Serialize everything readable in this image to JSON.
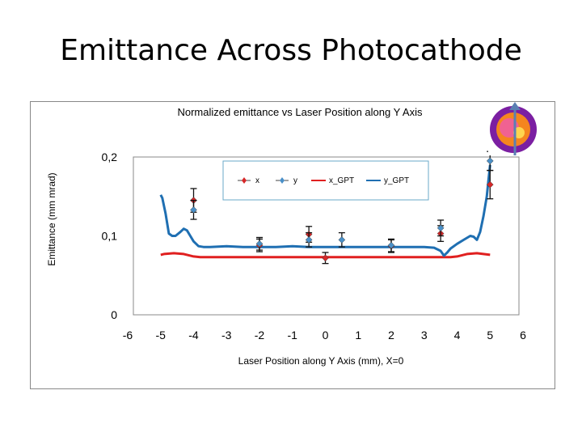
{
  "slide": {
    "title": "Emittance Across Photocathode"
  },
  "chart_data": {
    "type": "line",
    "title": "Normalized emittance vs Laser Position along Y Axis",
    "xlabel": "Laser Position along Y Axis (mm), X=0",
    "ylabel": "Emittance (mm mrad)",
    "xlim": [
      -6,
      6
    ],
    "ylim": [
      0,
      0.2
    ],
    "x_ticks": [
      "-6",
      "-5",
      "-4",
      "-3",
      "-2",
      "-1",
      "0",
      "1",
      "2",
      "3",
      "4",
      "5",
      "6"
    ],
    "y_ticks": [
      "0",
      "0,1",
      "0,2"
    ],
    "legend": [
      "x",
      "y",
      "x_GPT",
      "y_GPT"
    ],
    "legend_position": "top-right",
    "grid": false,
    "series": [
      {
        "name": "x",
        "kind": "points",
        "color": "#d62728",
        "points": [
          {
            "x": -4.0,
            "y": 0.145,
            "err": 0.015
          },
          {
            "x": -2.0,
            "y": 0.088,
            "err": 0.008
          },
          {
            "x": -0.5,
            "y": 0.102,
            "err": 0.01
          },
          {
            "x": 0.0,
            "y": 0.072,
            "err": 0.007
          },
          {
            "x": 2.0,
            "y": 0.087,
            "err": 0.008
          },
          {
            "x": 3.5,
            "y": 0.103,
            "err": 0.01
          },
          {
            "x": 5.0,
            "y": 0.165,
            "err": 0.018
          }
        ]
      },
      {
        "name": "y",
        "kind": "points",
        "color": "#4a90c8",
        "points": [
          {
            "x": -4.0,
            "y": 0.133,
            "err": 0.012
          },
          {
            "x": -2.0,
            "y": 0.09,
            "err": 0.008
          },
          {
            "x": -0.5,
            "y": 0.095,
            "err": 0.009
          },
          {
            "x": 0.5,
            "y": 0.095,
            "err": 0.009
          },
          {
            "x": 2.0,
            "y": 0.088,
            "err": 0.008
          },
          {
            "x": 3.5,
            "y": 0.11,
            "err": 0.01
          },
          {
            "x": 5.0,
            "y": 0.195,
            "err": 0.012
          }
        ]
      },
      {
        "name": "x_GPT",
        "kind": "line",
        "color": "#e02020",
        "x": [
          -5.0,
          -4.9,
          -4.6,
          -4.3,
          -4.0,
          -3.8,
          -3.5,
          -3.0,
          -2.0,
          -1.0,
          0.0,
          1.0,
          2.0,
          3.0,
          3.5,
          3.8,
          4.0,
          4.3,
          4.6,
          4.8,
          5.0
        ],
        "y": [
          0.076,
          0.077,
          0.078,
          0.077,
          0.074,
          0.073,
          0.073,
          0.073,
          0.073,
          0.073,
          0.073,
          0.073,
          0.073,
          0.073,
          0.073,
          0.073,
          0.074,
          0.077,
          0.078,
          0.077,
          0.076
        ]
      },
      {
        "name": "y_GPT",
        "kind": "line",
        "color": "#1f6fb2",
        "x": [
          -5.0,
          -4.95,
          -4.85,
          -4.75,
          -4.65,
          -4.55,
          -4.4,
          -4.3,
          -4.2,
          -4.1,
          -4.0,
          -3.85,
          -3.7,
          -3.5,
          -3.0,
          -2.5,
          -2.0,
          -1.5,
          -1.0,
          -0.5,
          0.0,
          0.5,
          1.0,
          1.5,
          2.0,
          2.5,
          3.0,
          3.3,
          3.5,
          3.6,
          3.7,
          3.8,
          4.0,
          4.2,
          4.4,
          4.5,
          4.6,
          4.7,
          4.8,
          4.9,
          4.95,
          5.0
        ],
        "y": [
          0.152,
          0.148,
          0.128,
          0.103,
          0.1,
          0.1,
          0.105,
          0.109,
          0.107,
          0.1,
          0.093,
          0.087,
          0.086,
          0.086,
          0.087,
          0.086,
          0.086,
          0.086,
          0.087,
          0.086,
          0.086,
          0.086,
          0.086,
          0.086,
          0.086,
          0.086,
          0.086,
          0.085,
          0.081,
          0.075,
          0.079,
          0.084,
          0.09,
          0.095,
          0.1,
          0.099,
          0.095,
          0.105,
          0.125,
          0.15,
          0.17,
          0.19
        ]
      }
    ]
  },
  "inset": {
    "icon": "beam-spot-image",
    "colors": [
      "#7b1fa2",
      "#f5851f",
      "#f06292",
      "#ffd54f"
    ]
  }
}
